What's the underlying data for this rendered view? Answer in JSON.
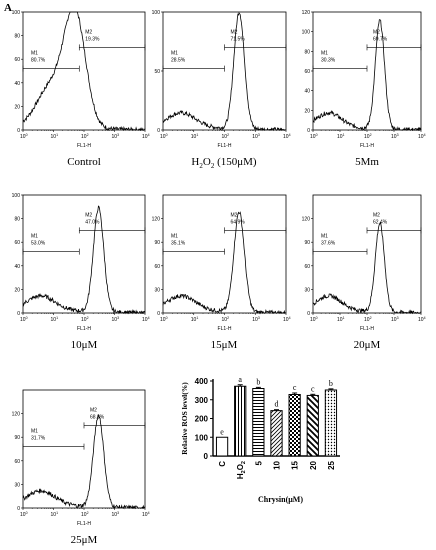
{
  "figure": {
    "panel_label": "A"
  },
  "chart_data": [
    {
      "type": "histogram",
      "caption": "Control",
      "xlabel": "FL1-H",
      "xscale": "log",
      "xlim": [
        1,
        10000
      ],
      "ylim": [
        0,
        100
      ],
      "yticks": [
        0,
        20,
        40,
        60,
        80,
        100
      ],
      "xticks": [
        "10",
        "10",
        "10",
        "10",
        "10"
      ],
      "xtick_exponents": [
        "0",
        "1",
        "2",
        "3",
        "4"
      ],
      "gates": [
        {
          "name": "M1",
          "percent": "80.7%",
          "range": [
            1,
            70
          ]
        },
        {
          "name": "M2",
          "percent": "19.3%",
          "range": [
            70,
            10000
          ]
        }
      ],
      "peak_x": 50,
      "peak_y": 96
    },
    {
      "type": "histogram",
      "caption": "H2O2 (150μM)",
      "xlabel": "FL1-H",
      "xscale": "log",
      "xlim": [
        1,
        10000
      ],
      "ylim": [
        0,
        100
      ],
      "yticks": [
        0,
        50,
        100
      ],
      "xticks": [
        "10",
        "10",
        "10",
        "10",
        "10"
      ],
      "xtick_exponents": [
        "0",
        "1",
        "2",
        "3",
        "4"
      ],
      "gates": [
        {
          "name": "M1",
          "percent": "28.5%",
          "range": [
            1,
            100
          ]
        },
        {
          "name": "M2",
          "percent": "71.5%",
          "range": [
            100,
            10000
          ]
        }
      ],
      "peak_x": 300,
      "peak_y": 99
    },
    {
      "type": "histogram",
      "caption": "5Mm",
      "xlabel": "FL1-H",
      "xscale": "log",
      "xlim": [
        1,
        10000
      ],
      "ylim": [
        0,
        120
      ],
      "yticks": [
        0,
        20,
        40,
        60,
        80,
        100,
        120
      ],
      "xticks": [
        "10",
        "10",
        "10",
        "10",
        "10"
      ],
      "xtick_exponents": [
        "0",
        "1",
        "2",
        "3",
        "4"
      ],
      "gates": [
        {
          "name": "M1",
          "percent": "30.3%",
          "range": [
            1,
            100
          ]
        },
        {
          "name": "M2",
          "percent": "69.7%",
          "range": [
            100,
            10000
          ]
        }
      ],
      "peak_x": 300,
      "peak_y": 110
    },
    {
      "type": "histogram",
      "caption": "10μM",
      "xlabel": "FL1-H",
      "xscale": "log",
      "xlim": [
        1,
        10000
      ],
      "ylim": [
        0,
        100
      ],
      "yticks": [
        0,
        20,
        40,
        60,
        80,
        100
      ],
      "xticks": [
        "10",
        "10",
        "10",
        "10",
        "10"
      ],
      "xtick_exponents": [
        "0",
        "1",
        "2",
        "3",
        "4"
      ],
      "gates": [
        {
          "name": "M1",
          "percent": "53.0%",
          "range": [
            1,
            70
          ]
        },
        {
          "name": "M2",
          "percent": "47.0%",
          "range": [
            70,
            10000
          ]
        }
      ],
      "peak_x": 300,
      "peak_y": 88
    },
    {
      "type": "histogram",
      "caption": "15μM",
      "xlabel": "FL1-H",
      "xscale": "log",
      "xlim": [
        1,
        10000
      ],
      "ylim": [
        0,
        150
      ],
      "yticks": [
        0,
        30,
        60,
        90,
        120
      ],
      "xticks": [
        "10",
        "10",
        "10",
        "10",
        "10"
      ],
      "xtick_exponents": [
        "0",
        "1",
        "2",
        "3",
        "4"
      ],
      "gates": [
        {
          "name": "M1",
          "percent": "35.1%",
          "range": [
            1,
            100
          ]
        },
        {
          "name": "M2",
          "percent": "64.9%",
          "range": [
            100,
            10000
          ]
        }
      ],
      "peak_x": 300,
      "peak_y": 127
    },
    {
      "type": "histogram",
      "caption": "20μM",
      "xlabel": "FL1-H",
      "xscale": "log",
      "xlim": [
        1,
        10000
      ],
      "ylim": [
        0,
        150
      ],
      "yticks": [
        0,
        30,
        60,
        90,
        120
      ],
      "xticks": [
        "10",
        "10",
        "10",
        "10",
        "10"
      ],
      "xtick_exponents": [
        "0",
        "1",
        "2",
        "3",
        "4"
      ],
      "gates": [
        {
          "name": "M1",
          "percent": "37.6%",
          "range": [
            1,
            100
          ]
        },
        {
          "name": "M2",
          "percent": "62.4%",
          "range": [
            100,
            10000
          ]
        }
      ],
      "peak_x": 300,
      "peak_y": 112
    },
    {
      "type": "histogram",
      "caption": "25μM",
      "xlabel": "FL1-H",
      "xscale": "log",
      "xlim": [
        1,
        10000
      ],
      "ylim": [
        0,
        150
      ],
      "yticks": [
        0,
        30,
        60,
        90,
        120
      ],
      "xticks": [
        "10",
        "10",
        "10",
        "10",
        "10"
      ],
      "xtick_exponents": [
        "0",
        "1",
        "2",
        "3",
        "4"
      ],
      "gates": [
        {
          "name": "M1",
          "percent": "31.7%",
          "range": [
            1,
            100
          ]
        },
        {
          "name": "M2",
          "percent": "68.3%",
          "range": [
            100,
            10000
          ]
        }
      ],
      "peak_x": 300,
      "peak_y": 116
    },
    {
      "type": "bar",
      "xlabel": "Chrysin(μM)",
      "ylabel": "Relative ROS level(%)",
      "ylim": [
        0,
        400
      ],
      "yticks": [
        0,
        100,
        200,
        300,
        400
      ],
      "categories": [
        "C",
        "H2O2",
        "5",
        "10",
        "15",
        "20",
        "25"
      ],
      "values": [
        100,
        372,
        360,
        242,
        328,
        323,
        352
      ],
      "errors": [
        0,
        8,
        6,
        5,
        8,
        6,
        6
      ],
      "significance": [
        "e",
        "a",
        "b",
        "d",
        "c",
        "c",
        "b"
      ],
      "patterns": [
        "blank",
        "vertical",
        "horizontal",
        "diagonal",
        "checker",
        "wide-diagonal",
        "dots"
      ]
    }
  ]
}
